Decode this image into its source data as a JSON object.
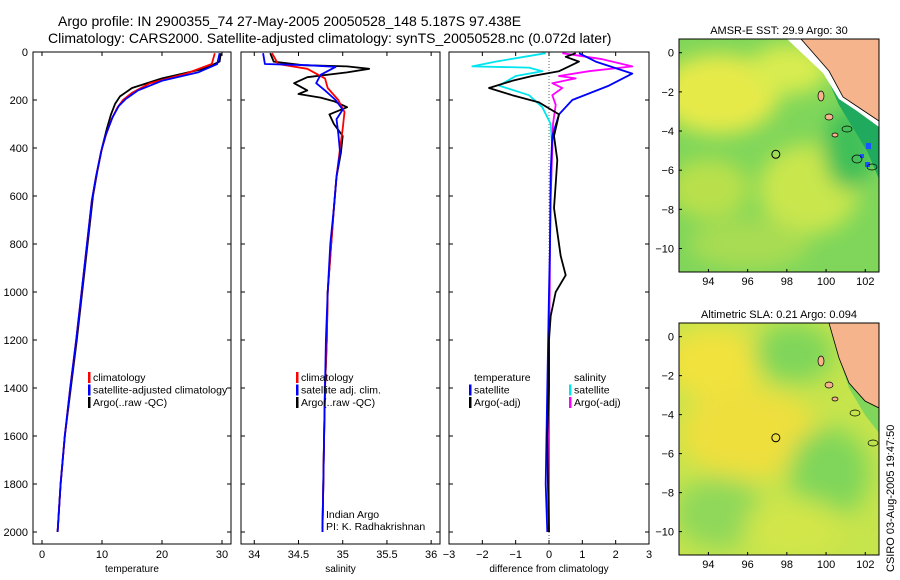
{
  "header": {
    "line1": "Argo profile: IN 2900355_74 27-May-2005 20050528_148 5.187S 97.438E",
    "line2": "Climatology: CARS2000. Satellite-adjusted climatology: synTS_20050528.nc (0.072d later)"
  },
  "footer_credit": "CSIRO 03-Aug-2005 19:47:50",
  "colors": {
    "climatology": "#ff0000",
    "satellite": "#0000ff",
    "argo": "#000000",
    "salinity": "#00e5ee",
    "salinity_adj": "#ff00ff",
    "land": "#f5b48c"
  },
  "chart_data": [
    {
      "id": "temperature",
      "type": "line",
      "xlabel": "temperature",
      "ylabel": "",
      "xlim": [
        -1.5,
        31.5
      ],
      "ylim": [
        0,
        2050
      ],
      "y_inverted": true,
      "xticks": [
        0,
        10,
        20,
        30
      ],
      "yticks": [
        0,
        200,
        400,
        600,
        800,
        1000,
        1200,
        1400,
        1600,
        1800,
        2000
      ],
      "legend": [
        {
          "label": "climatology",
          "color": "#ff0000"
        },
        {
          "label": "satellite-adjusted climatology",
          "color": "#0000ff"
        },
        {
          "label": "Argo(..raw -QC)",
          "color": "#000000"
        }
      ],
      "series": [
        {
          "name": "Argo(..raw -QC)",
          "color": "#000000",
          "points": [
            [
              29.8,
              5
            ],
            [
              29.6,
              40
            ],
            [
              27,
              70
            ],
            [
              20,
              110
            ],
            [
              15,
              150
            ],
            [
              13,
              185
            ],
            [
              12.2,
              215
            ],
            [
              11.5,
              260
            ],
            [
              10.8,
              320
            ],
            [
              10,
              400
            ],
            [
              9.2,
              500
            ],
            [
              8.5,
              600
            ],
            [
              7.6,
              800
            ],
            [
              6.7,
              1000
            ],
            [
              5.8,
              1200
            ],
            [
              4.8,
              1400
            ],
            [
              3.8,
              1600
            ],
            [
              3.1,
              1800
            ],
            [
              2.6,
              2000
            ]
          ]
        },
        {
          "name": "climatology",
          "color": "#ff0000",
          "points": [
            [
              28.8,
              5
            ],
            [
              28.3,
              50
            ],
            [
              24,
              90
            ],
            [
              18,
              130
            ],
            [
              15,
              170
            ],
            [
              13.5,
              200
            ],
            [
              12.6,
              230
            ],
            [
              11.6,
              280
            ],
            [
              10.6,
              350
            ],
            [
              9.8,
              420
            ],
            [
              9,
              520
            ],
            [
              8.3,
              620
            ],
            [
              7.5,
              800
            ],
            [
              6.6,
              1000
            ],
            [
              5.7,
              1200
            ],
            [
              4.7,
              1400
            ],
            [
              3.8,
              1600
            ],
            [
              3.1,
              1800
            ],
            [
              2.6,
              2000
            ]
          ]
        },
        {
          "name": "satellite-adjusted climatology",
          "color": "#0000ff",
          "points": [
            [
              29.6,
              5
            ],
            [
              29.2,
              50
            ],
            [
              26,
              85
            ],
            [
              20,
              120
            ],
            [
              16,
              160
            ],
            [
              14,
              195
            ],
            [
              12.8,
              225
            ],
            [
              11.8,
              270
            ],
            [
              10.7,
              340
            ],
            [
              9.9,
              410
            ],
            [
              9,
              520
            ],
            [
              8.3,
              620
            ],
            [
              7.5,
              800
            ],
            [
              6.6,
              1000
            ],
            [
              5.7,
              1200
            ],
            [
              4.7,
              1400
            ],
            [
              3.8,
              1600
            ],
            [
              3.1,
              1800
            ],
            [
              2.6,
              2000
            ]
          ]
        }
      ]
    },
    {
      "id": "salinity",
      "type": "line",
      "xlabel": "salinity",
      "ylabel": "",
      "xlim": [
        33.85,
        36.1
      ],
      "ylim": [
        0,
        2050
      ],
      "y_inverted": true,
      "xticks": [
        34,
        34.5,
        35,
        35.5,
        36
      ],
      "xticklabels": [
        "34",
        "34.5",
        "35",
        "35.5",
        "36"
      ],
      "legend": [
        {
          "label": "climatology",
          "color": "#ff0000"
        },
        {
          "label": "satellite adj. clim.",
          "color": "#0000ff"
        },
        {
          "label": "Argo(..raw -QC)",
          "color": "#000000"
        }
      ],
      "annotation_lines": [
        "Indian Argo",
        "PI: K. Radhakrishnan"
      ],
      "series": [
        {
          "name": "Argo(..raw -QC)",
          "color": "#000000",
          "points": [
            [
              34.18,
              5
            ],
            [
              34.22,
              40
            ],
            [
              34.55,
              55
            ],
            [
              35.05,
              60
            ],
            [
              35.3,
              70
            ],
            [
              35.05,
              85
            ],
            [
              34.6,
              105
            ],
            [
              34.45,
              130
            ],
            [
              34.6,
              160
            ],
            [
              34.5,
              175
            ],
            [
              34.75,
              190
            ],
            [
              34.9,
              205
            ],
            [
              35.05,
              230
            ],
            [
              34.85,
              260
            ],
            [
              34.9,
              300
            ],
            [
              35.0,
              350
            ],
            [
              34.98,
              420
            ],
            [
              34.93,
              520
            ],
            [
              34.9,
              650
            ],
            [
              34.87,
              800
            ],
            [
              34.83,
              1000
            ],
            [
              34.82,
              1200
            ],
            [
              34.8,
              1400
            ],
            [
              34.79,
              1600
            ],
            [
              34.78,
              1800
            ],
            [
              34.77,
              2000
            ]
          ]
        },
        {
          "name": "climatology",
          "color": "#ff0000",
          "points": [
            [
              34.2,
              5
            ],
            [
              34.27,
              50
            ],
            [
              34.6,
              70
            ],
            [
              34.8,
              110
            ],
            [
              34.83,
              150
            ],
            [
              34.95,
              200
            ],
            [
              35.02,
              250
            ],
            [
              35.0,
              320
            ],
            [
              34.97,
              400
            ],
            [
              34.93,
              520
            ],
            [
              34.9,
              650
            ],
            [
              34.87,
              800
            ],
            [
              34.83,
              1000
            ],
            [
              34.82,
              1200
            ],
            [
              34.8,
              1400
            ],
            [
              34.79,
              1600
            ],
            [
              34.78,
              1800
            ],
            [
              34.77,
              2000
            ]
          ]
        },
        {
          "name": "satellite adj. clim.",
          "color": "#0000ff",
          "points": [
            [
              34.1,
              5
            ],
            [
              34.12,
              50
            ],
            [
              34.6,
              55
            ],
            [
              34.92,
              62
            ],
            [
              34.75,
              95
            ],
            [
              34.7,
              130
            ],
            [
              34.8,
              160
            ],
            [
              34.92,
              200
            ],
            [
              35.0,
              240
            ],
            [
              34.93,
              280
            ],
            [
              34.95,
              340
            ],
            [
              34.97,
              420
            ],
            [
              34.93,
              520
            ],
            [
              34.9,
              650
            ],
            [
              34.86,
              800
            ],
            [
              34.83,
              1000
            ],
            [
              34.81,
              1200
            ],
            [
              34.8,
              1400
            ],
            [
              34.79,
              1600
            ],
            [
              34.78,
              1800
            ],
            [
              34.77,
              2000
            ]
          ]
        }
      ]
    },
    {
      "id": "difference",
      "type": "line",
      "xlabel": "difference from climatology",
      "ylabel": "",
      "xlim": [
        -3,
        3
      ],
      "ylim": [
        0,
        2050
      ],
      "y_inverted": true,
      "xticks": [
        -3,
        -2,
        -1,
        0,
        1,
        2,
        3
      ],
      "legend_left": [
        {
          "label": "temperature",
          "color": null
        },
        {
          "label": "satellite",
          "color": "#0000ff"
        },
        {
          "label": "Argo(-adj)",
          "color": "#000000"
        }
      ],
      "legend_right": [
        {
          "label": "salinity",
          "color": null
        },
        {
          "label": "satellite",
          "color": "#00e5ee"
        },
        {
          "label": "Argo(-adj)",
          "color": "#ff00ff"
        }
      ],
      "series": [
        {
          "name": "salinity satellite",
          "color": "#00e5ee",
          "points": [
            [
              -0.1,
              5
            ],
            [
              -1.6,
              40
            ],
            [
              -2.3,
              60
            ],
            [
              -0.6,
              65
            ],
            [
              -0.2,
              80
            ],
            [
              -1.0,
              100
            ],
            [
              -1.5,
              140
            ],
            [
              -0.6,
              180
            ],
            [
              -0.2,
              230
            ],
            [
              0.05,
              300
            ],
            [
              0.1,
              400
            ],
            [
              0.05,
              600
            ],
            [
              0.03,
              800
            ],
            [
              0.02,
              1000
            ],
            [
              0,
              1200
            ],
            [
              -0.02,
              1600
            ],
            [
              0,
              2000
            ]
          ]
        },
        {
          "name": "salinity Argo(-adj)",
          "color": "#ff00ff",
          "points": [
            [
              0.4,
              5
            ],
            [
              1.6,
              30
            ],
            [
              2.5,
              60
            ],
            [
              1.2,
              80
            ],
            [
              0.3,
              100
            ],
            [
              0.8,
              110
            ],
            [
              0.1,
              130
            ],
            [
              0.4,
              150
            ],
            [
              0.1,
              180
            ],
            [
              0.2,
              220
            ],
            [
              0.12,
              300
            ],
            [
              0.1,
              400
            ],
            [
              0.05,
              600
            ],
            [
              0.03,
              800
            ],
            [
              0.02,
              1000
            ],
            [
              0,
              1200
            ],
            [
              0,
              2000
            ]
          ]
        },
        {
          "name": "temperature satellite",
          "color": "#0000ff",
          "points": [
            [
              0.9,
              5
            ],
            [
              1.4,
              40
            ],
            [
              2.5,
              90
            ],
            [
              1.8,
              140
            ],
            [
              0.7,
              200
            ],
            [
              0.3,
              260
            ],
            [
              0.1,
              350
            ],
            [
              0.05,
              500
            ],
            [
              0.03,
              800
            ],
            [
              0,
              1000
            ],
            [
              -0.05,
              1400
            ],
            [
              -0.1,
              1800
            ],
            [
              -0.05,
              2000
            ]
          ]
        },
        {
          "name": "temperature Argo(-adj)",
          "color": "#000000",
          "points": [
            [
              0.8,
              5
            ],
            [
              0.5,
              20
            ],
            [
              0.9,
              40
            ],
            [
              0.6,
              60
            ],
            [
              0.3,
              80
            ],
            [
              -0.5,
              100
            ],
            [
              -1.1,
              120
            ],
            [
              -1.8,
              150
            ],
            [
              -1.1,
              180
            ],
            [
              -0.3,
              210
            ],
            [
              0.3,
              260
            ],
            [
              0.15,
              350
            ],
            [
              0.25,
              450
            ],
            [
              0.2,
              550
            ],
            [
              0.15,
              650
            ],
            [
              0.25,
              750
            ],
            [
              0.35,
              850
            ],
            [
              0.5,
              930
            ],
            [
              0.2,
              1000
            ],
            [
              0.05,
              1100
            ],
            [
              0,
              1200
            ],
            [
              0,
              1400
            ],
            [
              -0.05,
              1600
            ],
            [
              -0.03,
              1800
            ],
            [
              0,
              2000
            ]
          ]
        }
      ]
    },
    {
      "id": "sst_map",
      "type": "heatmap",
      "title": "AMSR-E SST: 29.9 Argo: 30",
      "xlim": [
        92.5,
        102.7
      ],
      "ylim": [
        -11.2,
        0.7
      ],
      "xticks": [
        94,
        96,
        98,
        100,
        102
      ],
      "yticks": [
        0,
        -2,
        -4,
        -6,
        -8,
        -10
      ],
      "marker": {
        "lon": 97.438,
        "lat": -5.187
      }
    },
    {
      "id": "sla_map",
      "type": "heatmap",
      "title": "Altimetric SLA: 0.21 Argo: 0.094",
      "xlim": [
        92.5,
        102.7
      ],
      "ylim": [
        -11.2,
        0.7
      ],
      "xticks": [
        94,
        96,
        98,
        100,
        102
      ],
      "yticks": [
        0,
        -2,
        -4,
        -6,
        -8,
        -10
      ],
      "marker": {
        "lon": 97.438,
        "lat": -5.187
      }
    }
  ]
}
